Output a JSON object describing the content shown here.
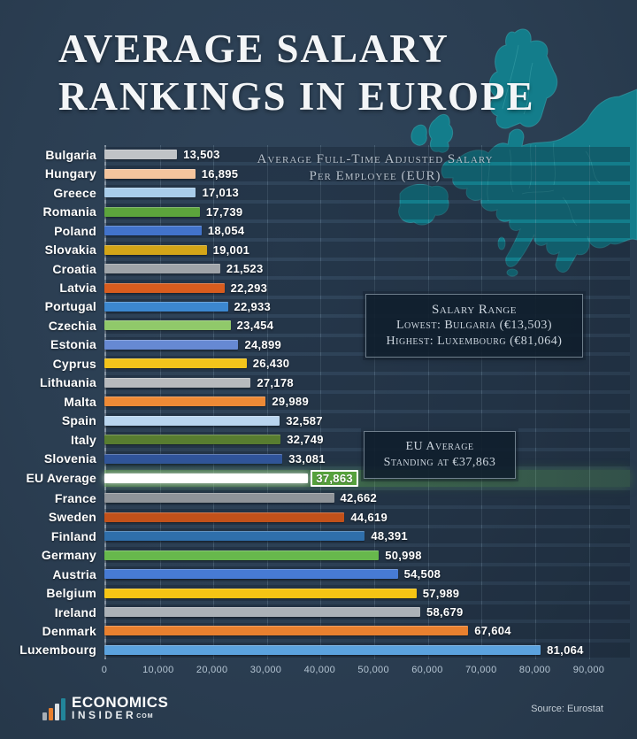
{
  "title": {
    "line1": "AVERAGE SALARY",
    "line2": "RANKINGS IN EUROPE"
  },
  "subtitle": {
    "line1": "Average Full-Time Adjusted Salary",
    "line2": "Per Employee (EUR)"
  },
  "annotations": {
    "salary_range": {
      "title": "Salary Range",
      "line1": "Lowest: Bulgaria (€13,503)",
      "line2": "Highest: Luxembourg (€81,064)"
    },
    "eu_average": {
      "line1": "EU Average",
      "line2": "Standing at €37,863"
    }
  },
  "chart_data": {
    "type": "bar",
    "orientation": "horizontal",
    "title": "Average Salary Rankings in Europe",
    "xlabel": "Average full-time adjusted salary per employee (EUR)",
    "ylabel": "",
    "xlim": [
      0,
      90000
    ],
    "grid": true,
    "highlight_category": "EU Average",
    "categories": [
      "Bulgaria",
      "Hungary",
      "Greece",
      "Romania",
      "Poland",
      "Slovakia",
      "Croatia",
      "Latvia",
      "Portugal",
      "Czechia",
      "Estonia",
      "Cyprus",
      "Lithuania",
      "Malta",
      "Spain",
      "Italy",
      "Slovenia",
      "EU Average",
      "France",
      "Sweden",
      "Finland",
      "Germany",
      "Austria",
      "Belgium",
      "Ireland",
      "Denmark",
      "Luxembourg"
    ],
    "values": [
      13503,
      16895,
      17013,
      17739,
      18054,
      19001,
      21523,
      22293,
      22933,
      23454,
      24899,
      26430,
      27178,
      29989,
      32587,
      32749,
      33081,
      37863,
      42662,
      44619,
      48391,
      50998,
      54508,
      57989,
      58679,
      67604,
      81064
    ],
    "value_labels": [
      "13,503",
      "16,895",
      "17,013",
      "17,739",
      "18,054",
      "19,001",
      "21,523",
      "22,293",
      "22,933",
      "23,454",
      "24,899",
      "26,430",
      "27,178",
      "29,989",
      "32,587",
      "32,749",
      "33,081",
      "37,863",
      "42,662",
      "44,619",
      "48,391",
      "50,998",
      "54,508",
      "57,989",
      "58,679",
      "67,604",
      "81,064"
    ],
    "colors": [
      "#c0c3c6",
      "#f4c59e",
      "#a9cdea",
      "#5ca43c",
      "#4273cb",
      "#d3a518",
      "#9fa4a9",
      "#d85c1e",
      "#3c87cf",
      "#90c96a",
      "#6689d3",
      "#f3c41b",
      "#b7babd",
      "#ee8a36",
      "#b9d5ef",
      "#587d30",
      "#30549a",
      "#ffffff",
      "#8f9499",
      "#c2511a",
      "#2f6fab",
      "#67b84c",
      "#477bd4",
      "#f6c414",
      "#abb1b7",
      "#e8802f",
      "#5ba2de"
    ],
    "ticks": [
      {
        "value": 0,
        "label": "0"
      },
      {
        "value": 10000,
        "label": "10,000"
      },
      {
        "value": 20000,
        "label": "20,000"
      },
      {
        "value": 30000,
        "label": "30,000"
      },
      {
        "value": 40000,
        "label": "40,000"
      },
      {
        "value": 50000,
        "label": "50,000"
      },
      {
        "value": 60000,
        "label": "60,000"
      },
      {
        "value": 70000,
        "label": "70,000"
      },
      {
        "value": 80000,
        "label": "80,000"
      },
      {
        "value": 90000,
        "label": "90,000"
      }
    ],
    "legend": null
  },
  "colors": {
    "background": "#2b3e52",
    "map_fill": "#137d8b",
    "map_stroke": "#3aa8b1",
    "highlight_green": "#56a13c",
    "text_primary": "#ffffff",
    "text_muted": "#b7c1cc"
  },
  "icons": {
    "logo": "bar-chart-icon",
    "map": "europe-map"
  },
  "footer": {
    "logo_line1": "ECONOMICS",
    "logo_line2": "INSIDER",
    "logo_suffix": "COM",
    "source": "Source: Eurostat"
  }
}
